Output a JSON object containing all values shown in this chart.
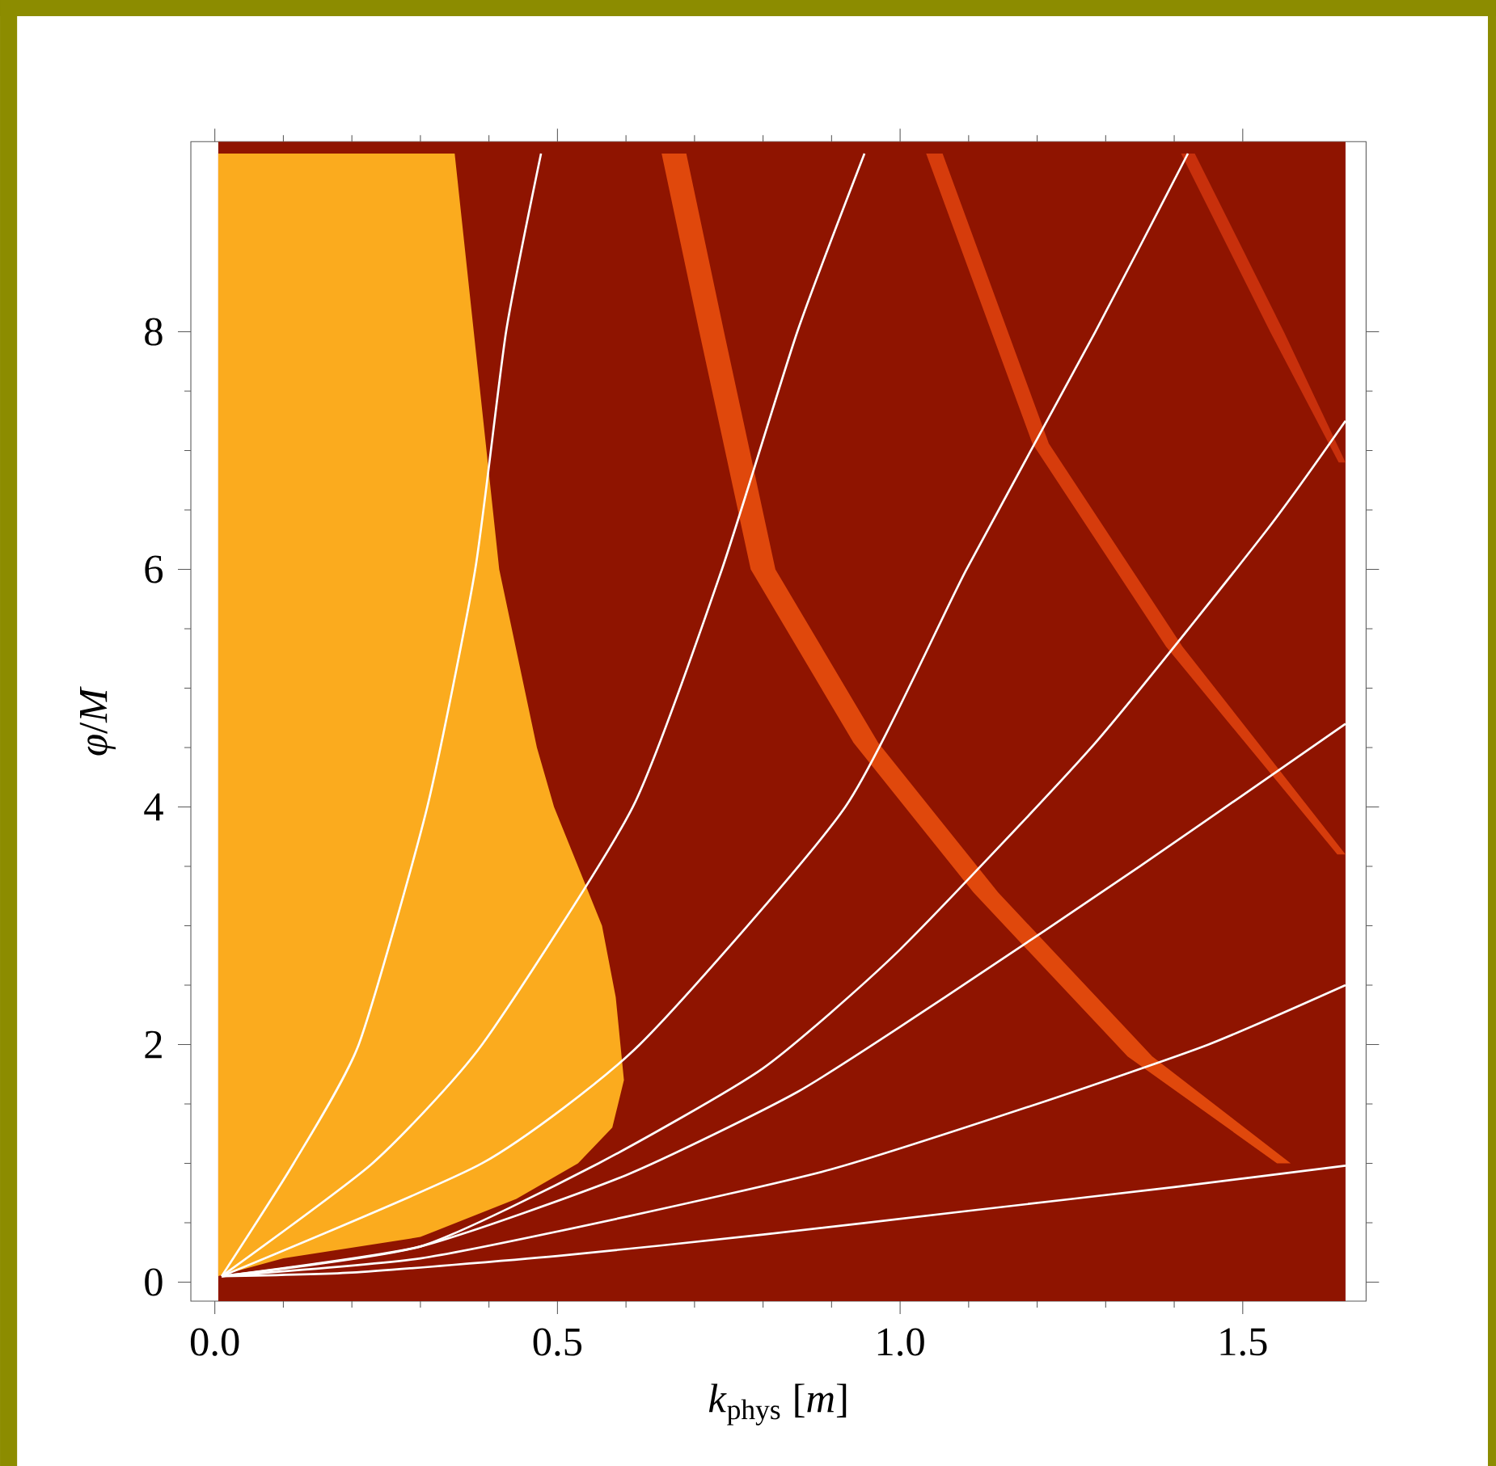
{
  "chart_data": {
    "type": "line",
    "xlabel": "*k*$_{phys}$ [*m*]",
    "ylabel": "*φ*/*M*",
    "xlim": [
      -0.035,
      1.68
    ],
    "ylim": [
      -0.16,
      9.6
    ],
    "xticks": [
      {
        "value": 0,
        "label": "0.0"
      },
      0.5,
      {
        "value": 1,
        "label": "1.0"
      },
      1.5
    ],
    "yticks": [
      0,
      2,
      4,
      6,
      8
    ],
    "grid": false,
    "bands": [
      {
        "axis": "x",
        "from": 0.005,
        "to": 1.65,
        "color": "#8f1400"
      }
    ],
    "series": [
      {
        "type": "area",
        "color": "#fbab1e",
        "x": [
          0.005,
          0.005,
          0.1,
          0.3,
          0.44,
          0.53,
          0.58,
          0.597,
          0.585,
          0.565,
          0.495,
          0.47,
          0.415,
          0.35
        ],
        "values": [
          9.5,
          0.05,
          0.2,
          0.38,
          0.7,
          1.0,
          1.3,
          1.7,
          2.4,
          3,
          4,
          4.5,
          6,
          9.5
        ]
      },
      {
        "type": "area",
        "color": "#e0480c",
        "x": [
          0.652,
          0.707,
          0.782,
          0.932,
          1.107,
          1.332,
          1.55,
          1.57,
          1.368,
          1.143,
          0.968,
          0.818,
          0.743,
          0.688
        ],
        "values": [
          9.5,
          8,
          6,
          4.54,
          3.28,
          1.9,
          1.0,
          1.0,
          1.9,
          3.28,
          4.54,
          6,
          8,
          9.5
        ]
      },
      {
        "type": "area",
        "color": "#d63c0c",
        "x": [
          1.038,
          1.193,
          1.388,
          1.638,
          1.65,
          1.412,
          1.217,
          1.062
        ],
        "values": [
          9.5,
          7.06,
          5.35,
          3.6,
          3.6,
          5.35,
          7.06,
          9.5
        ]
      },
      {
        "type": "area",
        "color": "#c8300c",
        "x": [
          1.41,
          1.54,
          1.64,
          1.65,
          1.56,
          1.43
        ],
        "values": [
          9.5,
          8.0,
          6.9,
          6.9,
          8.0,
          9.5
        ]
      },
      {
        "color": "#ffffff",
        "x": [
          0.01,
          0.115,
          0.21,
          0.31,
          0.38,
          0.425,
          0.476
        ],
        "values": [
          0.05,
          1,
          2,
          4,
          6,
          8,
          9.5
        ]
      },
      {
        "color": "#ffffff",
        "x": [
          0.01,
          0.23,
          0.39,
          0.61,
          0.74,
          0.85,
          0.948
        ],
        "values": [
          0.05,
          1,
          2,
          4,
          6,
          8,
          9.5
        ]
      },
      {
        "color": "#ffffff",
        "x": [
          0.01,
          0.39,
          0.62,
          0.92,
          1.097,
          1.285,
          1.42
        ],
        "values": [
          0.05,
          1,
          2,
          4,
          6,
          8,
          9.5
        ]
      },
      {
        "color": "#ffffff",
        "x": [
          0.01,
          0.3,
          0.56,
          0.8,
          1.0,
          1.285,
          1.535,
          1.65
        ],
        "values": [
          0.05,
          0.3,
          1,
          1.8,
          2.8,
          4.54,
          6.33,
          7.25
        ]
      },
      {
        "color": "#ffffff",
        "x": [
          0.01,
          0.3,
          0.6,
          0.85,
          1.066,
          1.35,
          1.65
        ],
        "values": [
          0.05,
          0.3,
          0.9,
          1.6,
          2.4,
          3.5,
          4.7
        ]
      },
      {
        "color": "#ffffff",
        "x": [
          0.01,
          0.3,
          0.6,
          0.9,
          1.2,
          1.45,
          1.65
        ],
        "values": [
          0.05,
          0.2,
          0.55,
          0.95,
          1.5,
          2.0,
          2.5
        ]
      },
      {
        "color": "#ffffff",
        "x": [
          0.01,
          0.2,
          0.5,
          0.8,
          1.1,
          1.4,
          1.65
        ],
        "values": [
          0.05,
          0.08,
          0.22,
          0.4,
          0.6,
          0.8,
          0.98
        ]
      }
    ]
  }
}
